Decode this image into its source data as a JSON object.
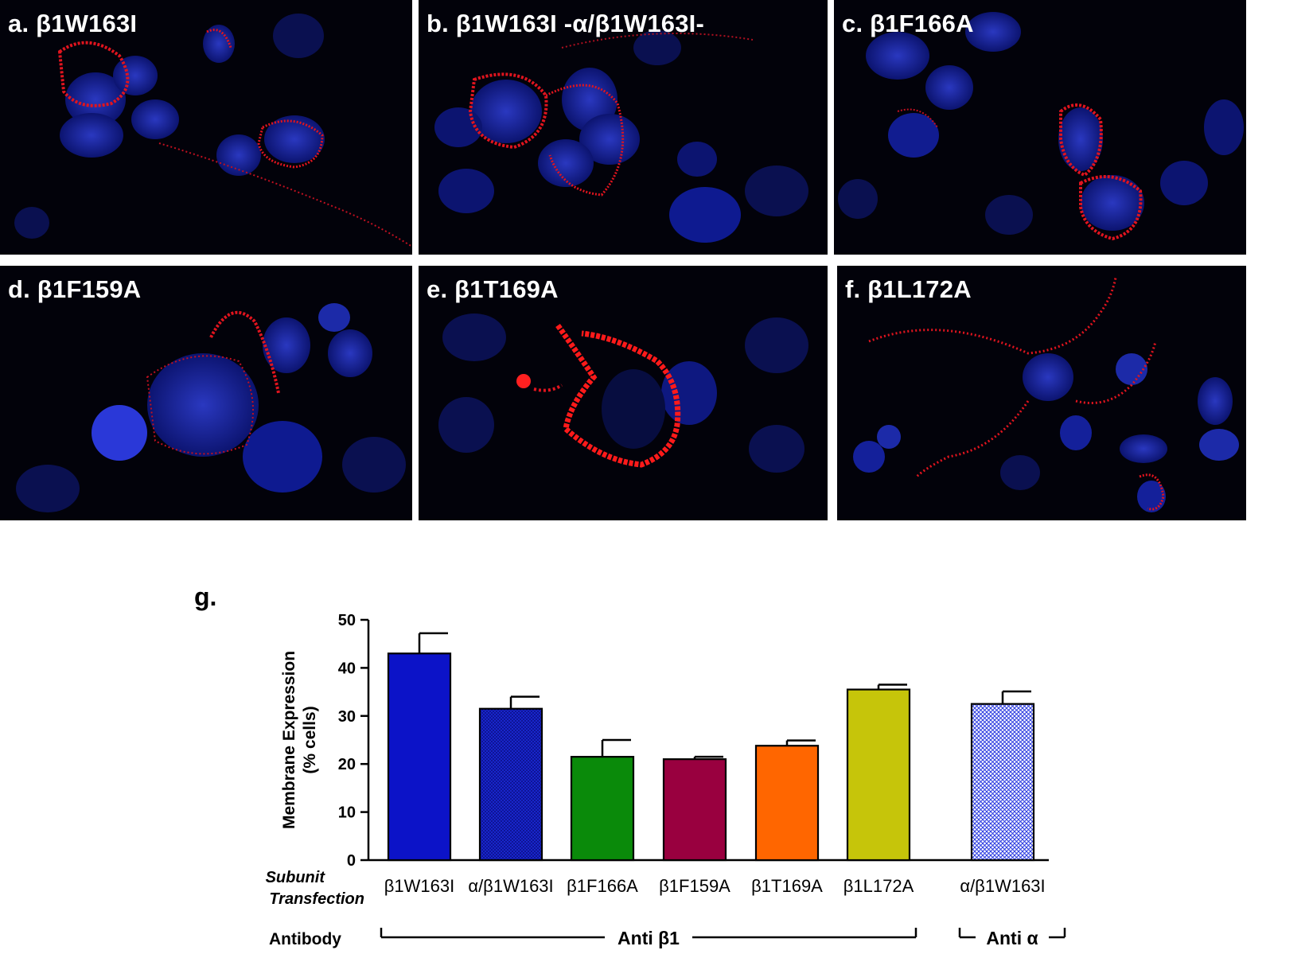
{
  "panels": [
    {
      "letter": "a.",
      "title": "β1W163I"
    },
    {
      "letter": "b.",
      "title": "β1W163I -α/β1W163I-"
    },
    {
      "letter": "c.",
      "title": "β1F166A"
    },
    {
      "letter": "d.",
      "title": "β1F159A"
    },
    {
      "letter": "e.",
      "title": "β1T169A"
    },
    {
      "letter": "f.",
      "title": "β1L172A"
    }
  ],
  "colors": {
    "nucleus": "#1c2aa8",
    "membrane": "#e0141e",
    "panel_bg": "#02020a"
  },
  "chart_data": {
    "type": "bar",
    "panel_label": "g.",
    "ylabel": [
      "Membrane Expression",
      "(% cells)"
    ],
    "ylim": [
      0,
      50
    ],
    "yticks": [
      0,
      10,
      20,
      30,
      40,
      50
    ],
    "row_label_subunit": [
      "Subunit",
      "Transfection"
    ],
    "row_label_antibody": "Antibody",
    "categories": [
      "β1W163I",
      "α/β1W163I",
      "β1F166A",
      "β1F159A",
      "β1T169A",
      "β1L172A",
      "α/β1W163I"
    ],
    "values": [
      43,
      31.5,
      21.5,
      21,
      23.8,
      35.5,
      32.5
    ],
    "errors": [
      4.2,
      2.5,
      3.5,
      0.5,
      1.1,
      1.0,
      2.6
    ],
    "colors": [
      "#0c13c8",
      "#0b0f87",
      "#0a8a0a",
      "#99003f",
      "#ff6600",
      "#c6c50a",
      "#aab4ff"
    ],
    "patterns": [
      "solid",
      "crosshatch-dark",
      "solid",
      "solid",
      "solid",
      "solid",
      "crosshatch-light"
    ],
    "antibody_groups": [
      {
        "label": "Anti β1",
        "from": 0,
        "to": 5
      },
      {
        "label": "Anti α",
        "from": 6,
        "to": 6
      }
    ]
  }
}
